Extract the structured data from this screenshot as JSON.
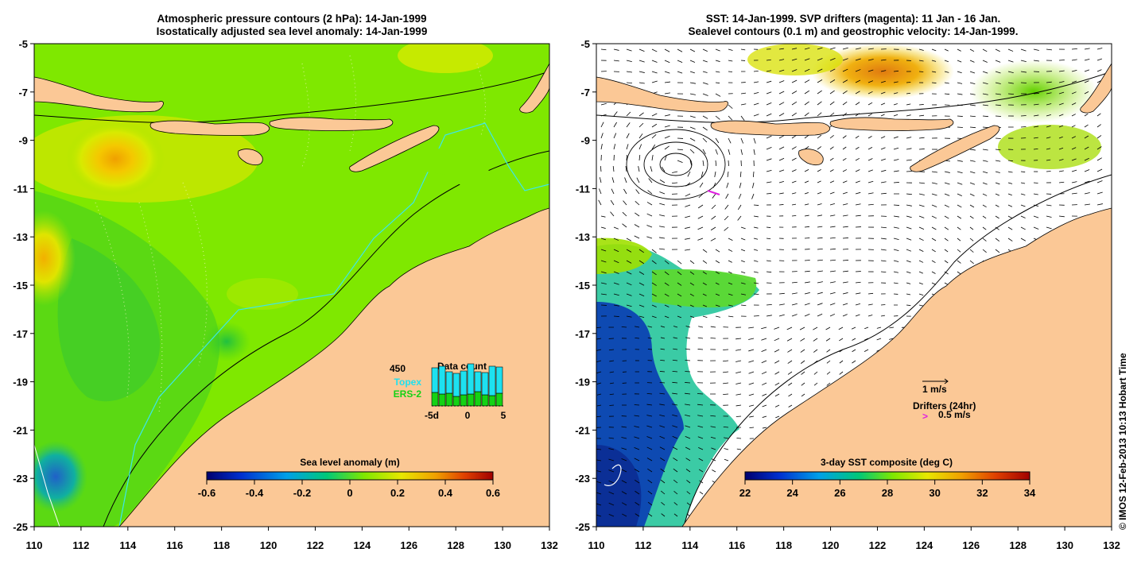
{
  "chart_data": [
    {
      "type": "heatmap",
      "panel": "left",
      "title_line1": "Atmospheric pressure contours (2 hPa): 14-Jan-1999",
      "title_line2": "Isostatically adjusted sea level anomaly: 14-Jan-1999",
      "x_ticks": [
        "110",
        "112",
        "114",
        "116",
        "118",
        "120",
        "122",
        "124",
        "126",
        "128",
        "130",
        "132"
      ],
      "y_ticks": [
        "-5",
        "-7",
        "-9",
        "-11",
        "-13",
        "-15",
        "-17",
        "-19",
        "-21",
        "-23",
        "-25"
      ],
      "xlim": [
        110,
        132
      ],
      "ylim": [
        -25,
        -5
      ],
      "colorbar": {
        "label": "Sea level anomaly (m)",
        "ticks": [
          "-0.6",
          "-0.4",
          "-0.2",
          "0",
          "0.2",
          "0.4",
          "0.6"
        ],
        "range": [
          -0.6,
          0.6
        ]
      },
      "inset": {
        "title": "Data count",
        "count_label": "450",
        "legend_topex": "Topex",
        "legend_ers2": "ERS-2",
        "x_ticks": [
          "-5d",
          "0",
          "5"
        ],
        "topex_values": [
          310,
          350,
          270,
          290,
          300,
          380,
          250,
          280,
          370,
          330
        ],
        "ers2_values": [
          170,
          150,
          160,
          120,
          140,
          150,
          180,
          140,
          130,
          160
        ],
        "max": 450
      },
      "colors": {
        "ocean": "#7fe800",
        "land": "#fbc896",
        "topex": "#1ee1f0",
        "ers2": "#14d214",
        "track": "#3ce6ec"
      }
    },
    {
      "type": "heatmap",
      "panel": "right",
      "title_line1": "SST: 14-Jan-1999. SVP drifters (magenta): 11 Jan - 16 Jan.",
      "title_line2": "Sealevel contours (0.1 m) and geostrophic velocity: 14-Jan-1999.",
      "x_ticks": [
        "110",
        "112",
        "114",
        "116",
        "118",
        "120",
        "122",
        "124",
        "126",
        "128",
        "130",
        "132"
      ],
      "y_ticks": [
        "-5",
        "-7",
        "-9",
        "-11",
        "-13",
        "-15",
        "-17",
        "-19",
        "-21",
        "-23",
        "-25"
      ],
      "xlim": [
        110,
        132
      ],
      "ylim": [
        -25,
        -5
      ],
      "colorbar": {
        "label": "3-day SST composite (deg C)",
        "ticks": [
          "22",
          "24",
          "26",
          "28",
          "30",
          "32",
          "34"
        ],
        "range": [
          22,
          34
        ]
      },
      "legend": {
        "vector_label": "1 m/s",
        "drifters_label": "Drifters (24hr)",
        "drifter_speed": "0.5 m/s"
      },
      "colors": {
        "land": "#fbc896",
        "drifter": "#e020e0"
      }
    }
  ],
  "footer": {
    "copyright": "© IMOS 12-Feb-2013 10:13 Hobart Time"
  }
}
